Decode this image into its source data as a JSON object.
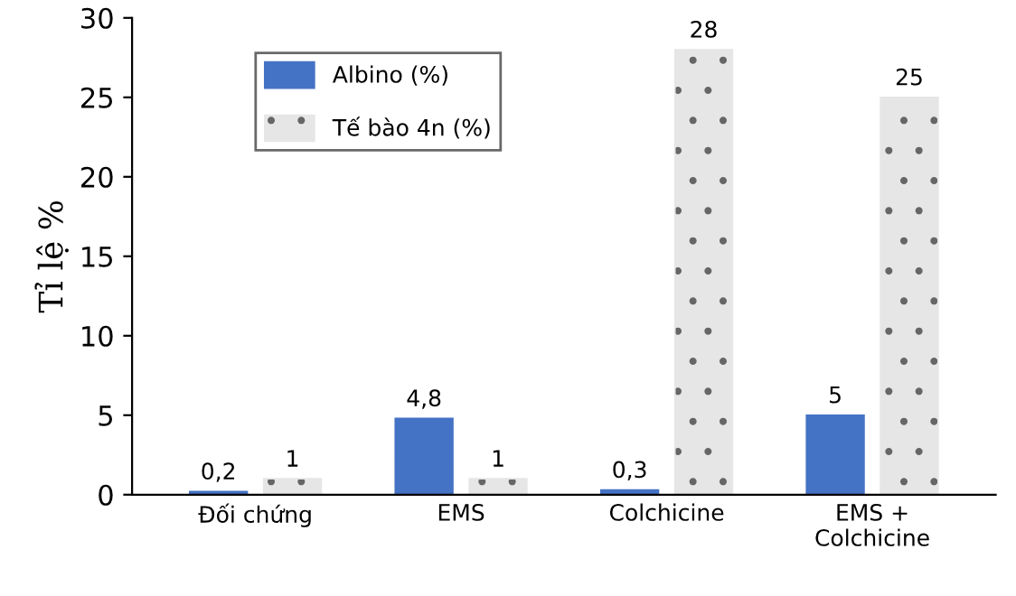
{
  "chart_data": {
    "type": "bar",
    "ylabel": "Tỉ lệ %",
    "categories": [
      "Đối chứng",
      "EMS",
      "Colchicine",
      "EMS +\nColchicine"
    ],
    "series": [
      {
        "name": "Albino (%)",
        "color": "#4472c4",
        "values": [
          0.2,
          4.8,
          0.3,
          5
        ],
        "value_labels": [
          "0,2",
          "4,8",
          "0,3",
          "5"
        ]
      },
      {
        "name": "Tế bào 4n (%)",
        "color": "#e7e6e6",
        "values": [
          1,
          1,
          28,
          25
        ],
        "value_labels": [
          "1",
          "1",
          "28",
          "25"
        ]
      }
    ],
    "ylim": [
      0,
      30
    ],
    "yticks": [
      0,
      5,
      10,
      15,
      20,
      25,
      30
    ],
    "grid": false,
    "legend": "top left"
  }
}
